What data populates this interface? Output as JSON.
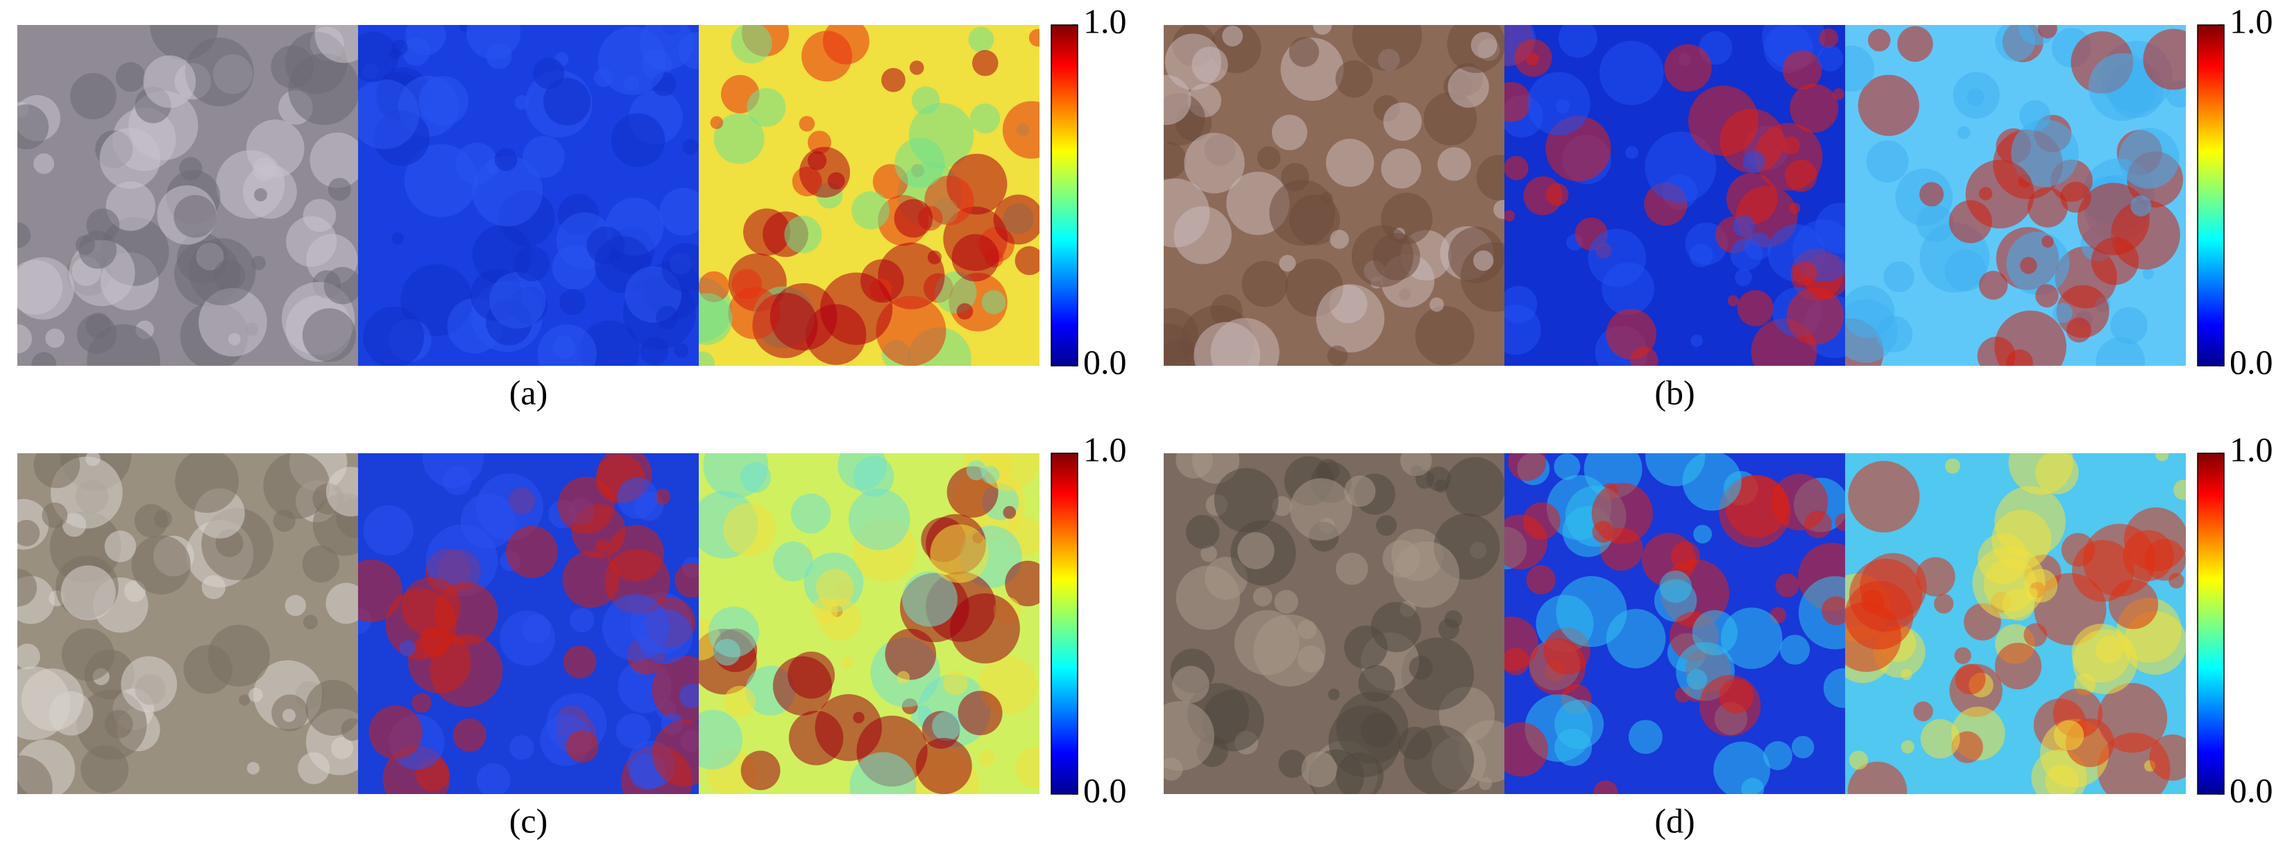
{
  "panels": [
    {
      "caption": "(a)",
      "colorbar": {
        "lim": [
          0,
          1
        ],
        "ticks": [
          {
            "value": 0,
            "label": "0.0"
          },
          {
            "value": 1,
            "label": "1.0"
          }
        ]
      }
    },
    {
      "caption": "(b)",
      "colorbar": {
        "lim": [
          0,
          1
        ],
        "ticks": [
          {
            "value": 0,
            "label": "0.0"
          },
          {
            "value": 1,
            "label": "1.0"
          }
        ]
      }
    },
    {
      "caption": "(c)",
      "colorbar": {
        "lim": [
          0,
          1
        ],
        "ticks": [
          {
            "value": 0,
            "label": "0.0"
          },
          {
            "value": 1,
            "label": "1.0"
          }
        ]
      }
    },
    {
      "caption": "(d)",
      "colorbar": {
        "lim": [
          0,
          1
        ],
        "ticks": [
          {
            "value": 0,
            "label": "0.0"
          },
          {
            "value": 1,
            "label": "1.0"
          }
        ]
      }
    }
  ]
}
